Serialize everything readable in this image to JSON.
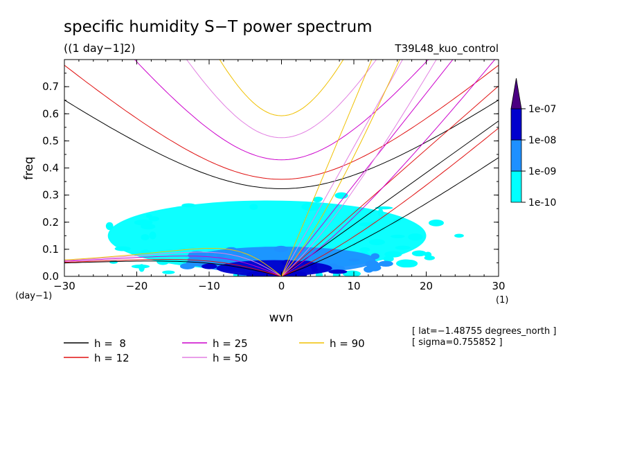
{
  "chart_data": {
    "type": "heatmap",
    "title": "specific humidity S−T power spectrum",
    "subtitle": "((1 day−1]2)",
    "run_label": "T39L48_kuo_control",
    "xlabel": "wvn",
    "ylabel": "freq",
    "x_unit": "(1)",
    "y_unit": "(day−1)",
    "xlim": [
      -30,
      30
    ],
    "ylim": [
      0,
      0.8
    ],
    "x_ticks": [
      -30,
      -20,
      -10,
      0,
      10,
      20,
      30
    ],
    "x_tick_labels": [
      "−30",
      "−20",
      "−10",
      "0",
      "10",
      "20",
      "30"
    ],
    "y_ticks": [
      0,
      0.1,
      0.2,
      0.3,
      0.4,
      0.5,
      0.6,
      0.7
    ],
    "y_tick_labels": [
      "0.0",
      "0.1",
      "0.2",
      "0.3",
      "0.4",
      "0.5",
      "0.6",
      "0.7"
    ],
    "colorbar": {
      "levels": [
        "1e-10",
        "1e-09",
        "1e-08",
        "1e-07"
      ],
      "colors": [
        "#00ffff",
        "#1e90ff",
        "#0000cd",
        "#4b0082"
      ]
    },
    "power_regions": [
      {
        "level": 0,
        "label": "broad cyan region (>1e-10)",
        "center": [
          -2,
          0.15
        ],
        "rx": 22,
        "ry": 0.13
      },
      {
        "level": 1,
        "label": "blue region (>1e-09)",
        "center": [
          0,
          0.06
        ],
        "rx": 13,
        "ry": 0.05
      },
      {
        "level": 2,
        "label": "dark blue region (>1e-08)",
        "center": [
          -1,
          0.03
        ],
        "rx": 8,
        "ry": 0.03
      }
    ],
    "dispersion_curves": {
      "equivalent_depths": [
        8,
        12,
        25,
        50,
        90
      ],
      "colors": {
        "8": "#000000",
        "12": "#e01010",
        "25": "#cc00cc",
        "50": "#e27fe2",
        "90": "#f0c000"
      }
    },
    "legend": [
      {
        "label": "h =  8",
        "color": "#000000"
      },
      {
        "label": "h = 12",
        "color": "#e01010"
      },
      {
        "label": "h = 25",
        "color": "#cc00cc"
      },
      {
        "label": "h = 50",
        "color": "#e27fe2"
      },
      {
        "label": "h = 90",
        "color": "#f0c000"
      }
    ],
    "annotations": [
      "[ lat=−1.48755 degrees_north ]",
      "[ sigma=0.755852 ]"
    ]
  }
}
